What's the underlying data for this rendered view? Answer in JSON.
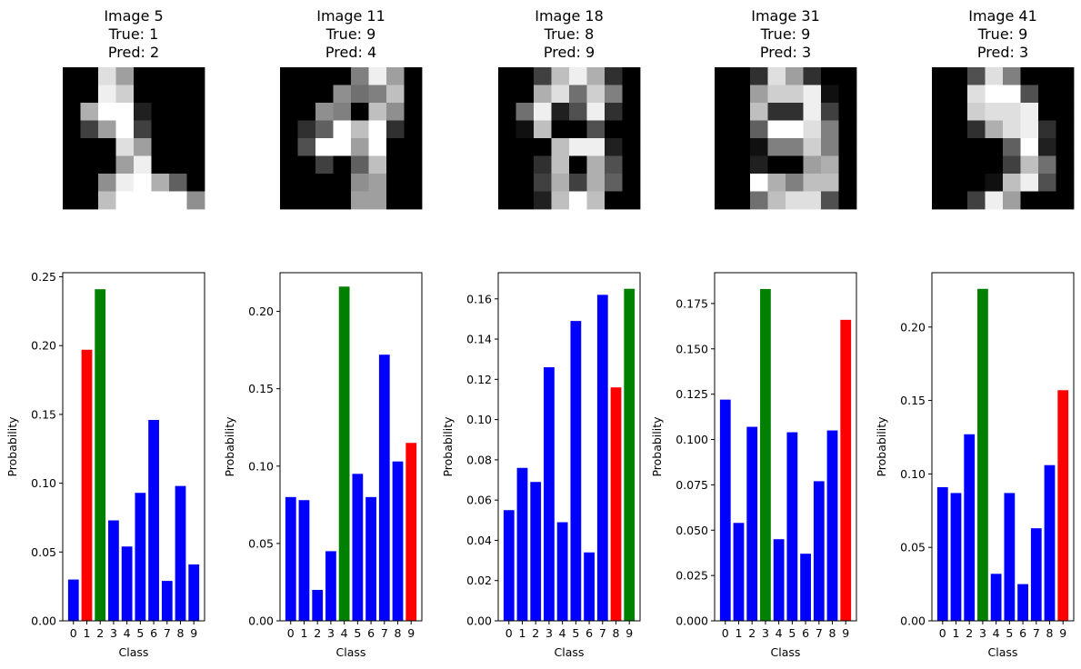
{
  "figure": {
    "background": "#ffffff"
  },
  "colors": {
    "default": "#0000ff",
    "true": "#008000",
    "pred": "#ff0000",
    "axis": "#000000"
  },
  "chart_data": [
    {
      "type": "bar",
      "title": [
        "Image 5",
        "True: 1",
        "Pred: 2"
      ],
      "xlabel": "Class",
      "ylabel": "Probability",
      "categories": [
        "0",
        "1",
        "2",
        "3",
        "4",
        "5",
        "6",
        "7",
        "8",
        "9"
      ],
      "values": [
        0.03,
        0.197,
        0.241,
        0.073,
        0.054,
        0.093,
        0.146,
        0.029,
        0.098,
        0.041
      ],
      "true_class": 1,
      "pred_class": 2,
      "highlight_note": "green bar at index 2, red bar at index 1 (as shown)",
      "bar_colors": [
        "#0000ff",
        "#ff0000",
        "#008000",
        "#0000ff",
        "#0000ff",
        "#0000ff",
        "#0000ff",
        "#0000ff",
        "#0000ff",
        "#0000ff"
      ],
      "yticks": [
        0.0,
        0.05,
        0.1,
        0.15,
        0.2,
        0.25
      ],
      "ytick_labels": [
        "0.00",
        "0.05",
        "0.10",
        "0.15",
        "0.20",
        "0.25"
      ],
      "ylim": [
        0,
        0.253
      ],
      "image": [
        [
          0,
          0,
          14,
          10,
          0,
          0,
          0,
          0
        ],
        [
          0,
          0,
          15,
          13,
          0,
          0,
          0,
          0
        ],
        [
          0,
          11,
          16,
          16,
          2,
          0,
          0,
          0
        ],
        [
          0,
          4,
          10,
          16,
          4,
          0,
          0,
          0
        ],
        [
          0,
          0,
          0,
          14,
          10,
          0,
          0,
          0
        ],
        [
          0,
          0,
          0,
          10,
          15,
          0,
          0,
          0
        ],
        [
          0,
          0,
          9,
          15,
          16,
          11,
          6,
          0
        ],
        [
          0,
          0,
          12,
          16,
          16,
          16,
          16,
          9
        ]
      ]
    },
    {
      "type": "bar",
      "title": [
        "Image 11",
        "True: 9",
        "Pred: 4"
      ],
      "xlabel": "Class",
      "ylabel": "Probability",
      "categories": [
        "0",
        "1",
        "2",
        "3",
        "4",
        "5",
        "6",
        "7",
        "8",
        "9"
      ],
      "values": [
        0.08,
        0.078,
        0.02,
        0.045,
        0.216,
        0.095,
        0.08,
        0.172,
        0.103,
        0.115
      ],
      "true_class": 9,
      "pred_class": 4,
      "bar_colors": [
        "#0000ff",
        "#0000ff",
        "#0000ff",
        "#0000ff",
        "#008000",
        "#0000ff",
        "#0000ff",
        "#0000ff",
        "#0000ff",
        "#ff0000"
      ],
      "yticks": [
        0.0,
        0.05,
        0.1,
        0.15,
        0.2
      ],
      "ytick_labels": [
        "0.00",
        "0.05",
        "0.10",
        "0.15",
        "0.20"
      ],
      "ylim": [
        0,
        0.225
      ],
      "image": [
        [
          0,
          0,
          0,
          0,
          8,
          15,
          10,
          0
        ],
        [
          0,
          0,
          0,
          9,
          7,
          8,
          12,
          0
        ],
        [
          0,
          0,
          9,
          8,
          0,
          12,
          9,
          0
        ],
        [
          0,
          3,
          6,
          16,
          12,
          16,
          3,
          0
        ],
        [
          0,
          5,
          16,
          16,
          10,
          16,
          0,
          0
        ],
        [
          0,
          0,
          4,
          0,
          6,
          12,
          0,
          0
        ],
        [
          0,
          0,
          0,
          0,
          9,
          10,
          0,
          0
        ],
        [
          0,
          0,
          0,
          0,
          10,
          10,
          0,
          0
        ]
      ]
    },
    {
      "type": "bar",
      "title": [
        "Image 18",
        "True: 8",
        "Pred: 9"
      ],
      "xlabel": "Class",
      "ylabel": "Probability",
      "categories": [
        "0",
        "1",
        "2",
        "3",
        "4",
        "5",
        "6",
        "7",
        "8",
        "9"
      ],
      "values": [
        0.055,
        0.076,
        0.069,
        0.126,
        0.049,
        0.149,
        0.034,
        0.162,
        0.116,
        0.165
      ],
      "true_class": 8,
      "pred_class": 9,
      "highlight_note": "green bar at index 9, red bar at index 8 (as shown)",
      "bar_colors": [
        "#0000ff",
        "#0000ff",
        "#0000ff",
        "#0000ff",
        "#0000ff",
        "#0000ff",
        "#0000ff",
        "#0000ff",
        "#ff0000",
        "#008000"
      ],
      "yticks": [
        0.0,
        0.02,
        0.04,
        0.06,
        0.08,
        0.1,
        0.12,
        0.14,
        0.16
      ],
      "ytick_labels": [
        "0.00",
        "0.02",
        "0.04",
        "0.06",
        "0.08",
        "0.10",
        "0.12",
        "0.14",
        "0.16"
      ],
      "ylim": [
        0,
        0.173
      ],
      "image": [
        [
          0,
          0,
          4,
          12,
          15,
          11,
          3,
          0
        ],
        [
          0,
          0,
          11,
          14,
          7,
          13,
          8,
          0
        ],
        [
          0,
          7,
          15,
          2,
          5,
          15,
          3,
          0
        ],
        [
          0,
          1,
          12,
          0,
          0,
          5,
          0,
          0
        ],
        [
          0,
          0,
          0,
          12,
          15,
          15,
          2,
          0
        ],
        [
          0,
          0,
          3,
          12,
          0,
          11,
          5,
          0
        ],
        [
          0,
          0,
          4,
          11,
          4,
          11,
          6,
          0
        ],
        [
          0,
          0,
          2,
          12,
          16,
          12,
          0,
          0
        ]
      ]
    },
    {
      "type": "bar",
      "title": [
        "Image 31",
        "True: 9",
        "Pred: 3"
      ],
      "xlabel": "Class",
      "ylabel": "Probability",
      "categories": [
        "0",
        "1",
        "2",
        "3",
        "4",
        "5",
        "6",
        "7",
        "8",
        "9"
      ],
      "values": [
        0.122,
        0.054,
        0.107,
        0.183,
        0.045,
        0.104,
        0.037,
        0.077,
        0.105,
        0.166
      ],
      "true_class": 9,
      "pred_class": 3,
      "bar_colors": [
        "#0000ff",
        "#0000ff",
        "#0000ff",
        "#008000",
        "#0000ff",
        "#0000ff",
        "#0000ff",
        "#0000ff",
        "#0000ff",
        "#ff0000"
      ],
      "yticks": [
        0.0,
        0.025,
        0.05,
        0.075,
        0.1,
        0.125,
        0.15,
        0.175
      ],
      "ytick_labels": [
        "0.000",
        "0.025",
        "0.050",
        "0.075",
        "0.100",
        "0.125",
        "0.150",
        "0.175"
      ],
      "ylim": [
        0,
        0.192
      ],
      "image": [
        [
          0,
          0,
          3,
          14,
          10,
          3,
          0,
          0
        ],
        [
          0,
          0,
          10,
          13,
          13,
          15,
          1,
          0
        ],
        [
          0,
          0,
          12,
          3,
          3,
          15,
          4,
          0
        ],
        [
          0,
          0,
          6,
          16,
          16,
          14,
          8,
          0
        ],
        [
          0,
          0,
          1,
          8,
          8,
          13,
          8,
          0
        ],
        [
          0,
          0,
          2,
          0,
          0,
          10,
          11,
          0
        ],
        [
          0,
          0,
          16,
          11,
          8,
          12,
          12,
          0
        ],
        [
          0,
          0,
          7,
          12,
          14,
          14,
          5,
          0
        ]
      ]
    },
    {
      "type": "bar",
      "title": [
        "Image 41",
        "True: 9",
        "Pred: 3"
      ],
      "xlabel": "Class",
      "ylabel": "Probability",
      "categories": [
        "0",
        "1",
        "2",
        "3",
        "4",
        "5",
        "6",
        "7",
        "8",
        "9"
      ],
      "values": [
        0.091,
        0.087,
        0.127,
        0.226,
        0.032,
        0.087,
        0.025,
        0.063,
        0.106,
        0.157
      ],
      "true_class": 9,
      "pred_class": 3,
      "bar_colors": [
        "#0000ff",
        "#0000ff",
        "#0000ff",
        "#008000",
        "#0000ff",
        "#0000ff",
        "#0000ff",
        "#0000ff",
        "#0000ff",
        "#ff0000"
      ],
      "yticks": [
        0.0,
        0.05,
        0.1,
        0.15,
        0.2
      ],
      "ytick_labels": [
        "0.00",
        "0.05",
        "0.10",
        "0.15",
        "0.20"
      ],
      "ylim": [
        0,
        0.237
      ],
      "image": [
        [
          0,
          0,
          5,
          14,
          8,
          0,
          0,
          0
        ],
        [
          0,
          0,
          14,
          16,
          16,
          5,
          0,
          0
        ],
        [
          0,
          0,
          13,
          14,
          14,
          15,
          0,
          0
        ],
        [
          0,
          0,
          3,
          11,
          14,
          15,
          3,
          0
        ],
        [
          0,
          0,
          0,
          0,
          6,
          16,
          2,
          0
        ],
        [
          0,
          0,
          0,
          0,
          4,
          12,
          7,
          0
        ],
        [
          0,
          0,
          0,
          1,
          12,
          15,
          5,
          0
        ],
        [
          0,
          0,
          4,
          15,
          10,
          0,
          0,
          0
        ]
      ]
    }
  ]
}
